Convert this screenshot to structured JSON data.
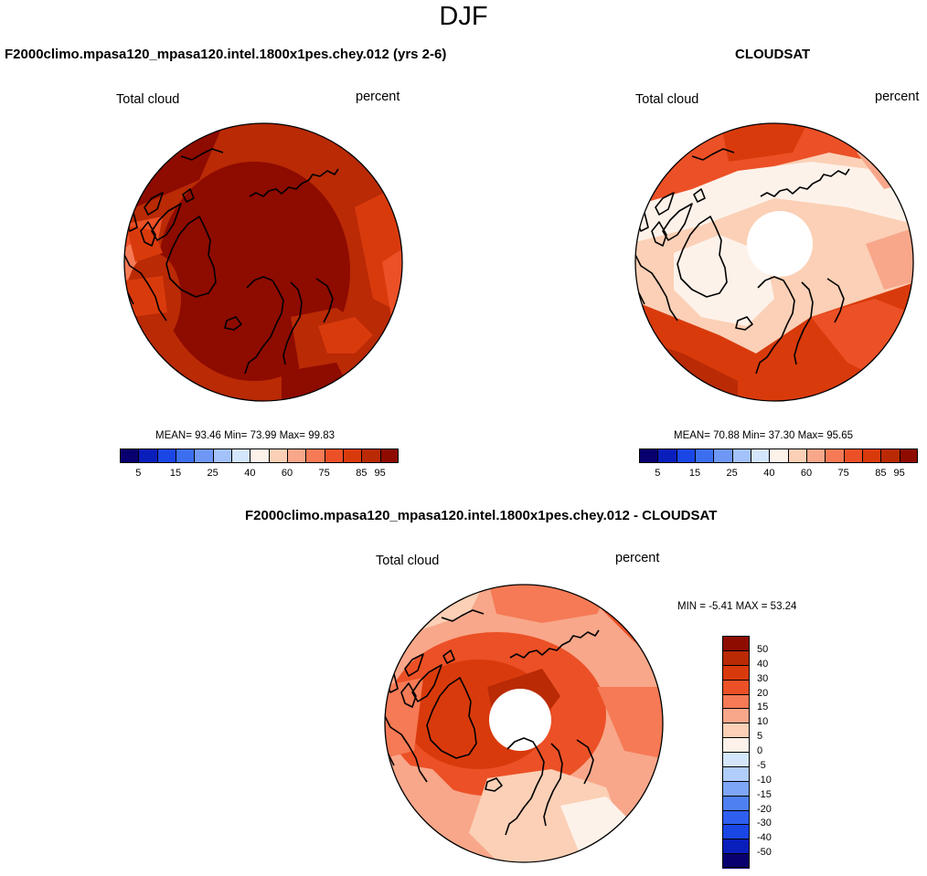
{
  "figure": {
    "season": "DJF"
  },
  "panels": [
    {
      "title": "F2000climo.mpasa120_mpasa120.intel.1800x1pes.chey.012 (yrs 2-6)",
      "left_label": "Total cloud",
      "right_label": "percent",
      "stats": {
        "mean_label": "MEAN=",
        "mean": "93.46",
        "min_label": "Min=",
        "min": "73.99",
        "max_label": "Max=",
        "max": "99.83"
      }
    },
    {
      "title": "CLOUDSAT",
      "left_label": "Total cloud",
      "right_label": "percent",
      "stats": {
        "mean_label": "MEAN=",
        "mean": "70.88",
        "min_label": "Min=",
        "min": "37.30",
        "max_label": "Max=",
        "max": "95.65"
      }
    },
    {
      "title": "F2000climo.mpasa120_mpasa120.intel.1800x1pes.chey.012 - CLOUDSAT",
      "left_label": "Total cloud",
      "right_label": "percent",
      "stats": {
        "min_label": "MIN =",
        "min": "-5.41",
        "max_label": "MAX =",
        "max": "53.24"
      }
    }
  ],
  "colorbar_abs": {
    "colors": [
      "#08006e",
      "#0a1ebc",
      "#1a46e6",
      "#3c6ef0",
      "#6f97f6",
      "#a4c2fa",
      "#d4e6fb",
      "#fdf2ea",
      "#fbd0b6",
      "#f8a78a",
      "#f57a55",
      "#ec5026",
      "#d93a0c",
      "#b92a05",
      "#8e0b00"
    ],
    "ticks": [
      "5",
      "15",
      "25",
      "40",
      "60",
      "75",
      "85",
      "95"
    ]
  },
  "colorbar_diff": {
    "colors": [
      "#08006e",
      "#0a1ebc",
      "#1a46e6",
      "#2f5ff0",
      "#4f80f2",
      "#7ea6f7",
      "#b0cdfb",
      "#d4e6fb",
      "#fdf2ea",
      "#fbd0b6",
      "#f8a78a",
      "#f57a55",
      "#ec5026",
      "#d93a0c",
      "#b92a05",
      "#8e0b00"
    ],
    "ticks": [
      "-50",
      "-40",
      "-30",
      "-20",
      "-15",
      "-10",
      "-5",
      "0",
      "5",
      "10",
      "15",
      "20",
      "30",
      "40",
      "50"
    ]
  },
  "chart_data": [
    {
      "type": "heatmap",
      "projection": "polar stereographic (north)",
      "title": "F2000climo.mpasa120_mpasa120.intel.1800x1pes.chey.012 (yrs 2-6)",
      "variable": "Total cloud",
      "units": "percent",
      "mean": 93.46,
      "min": 73.99,
      "max": 99.83,
      "levels": [
        5,
        10,
        15,
        20,
        25,
        30,
        40,
        50,
        60,
        65,
        70,
        75,
        80,
        85,
        90,
        95
      ]
    },
    {
      "type": "heatmap",
      "projection": "polar stereographic (north)",
      "title": "CLOUDSAT",
      "variable": "Total cloud",
      "units": "percent",
      "mean": 70.88,
      "min": 37.3,
      "max": 95.65,
      "levels": [
        5,
        10,
        15,
        20,
        25,
        30,
        40,
        50,
        60,
        65,
        70,
        75,
        80,
        85,
        90,
        95
      ]
    },
    {
      "type": "heatmap",
      "projection": "polar stereographic (north)",
      "title": "F2000climo.mpasa120_mpasa120.intel.1800x1pes.chey.012 - CLOUDSAT",
      "variable": "Total cloud",
      "units": "percent",
      "min": -5.41,
      "max": 53.24,
      "levels": [
        -50,
        -40,
        -30,
        -20,
        -15,
        -10,
        -5,
        0,
        5,
        10,
        15,
        20,
        30,
        40,
        50
      ]
    }
  ]
}
